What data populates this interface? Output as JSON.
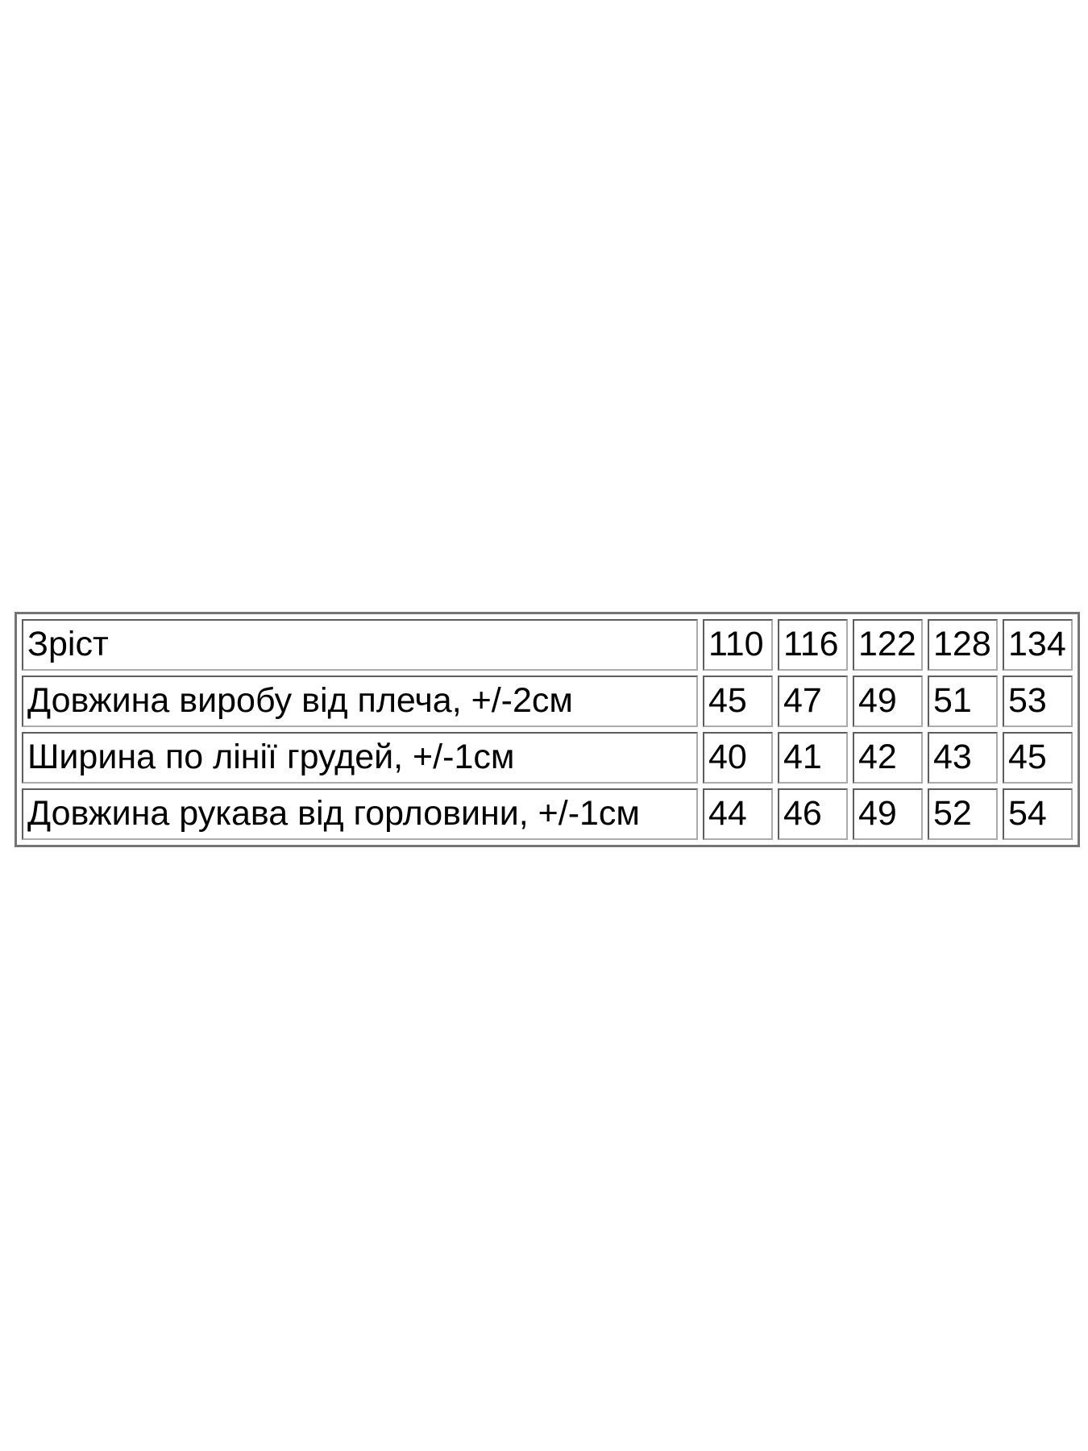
{
  "page": {
    "background_color": "#ffffff"
  },
  "size_chart": {
    "text_color": "#000000",
    "outer_border_color": "#747474",
    "cell_border_color": "#5d5d5d",
    "rows": [
      {
        "label": "Зріст",
        "values": [
          "110",
          "116",
          "122",
          "128",
          "134"
        ]
      },
      {
        "label": "Довжина виробу від плеча, +/-2см",
        "values": [
          "45",
          "47",
          "49",
          "51",
          "53"
        ]
      },
      {
        "label": "Ширина по лінії грудей, +/-1см",
        "values": [
          "40",
          "41",
          "42",
          "43",
          "45"
        ]
      },
      {
        "label": "Довжина рукава від горловини, +/-1см",
        "values": [
          "44",
          "46",
          "49",
          "52",
          "54"
        ]
      }
    ]
  }
}
